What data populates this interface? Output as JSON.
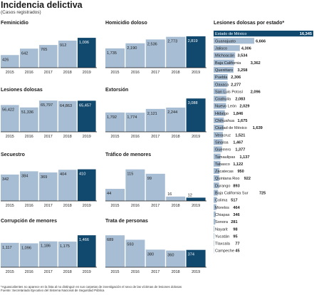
{
  "header": {
    "title": "Incidencia delictiva",
    "subtitle": "(Casos registrados)"
  },
  "footnote": {
    "line1": "*Aguascalientes no aparece en la lista al no distinguir en sus carpetas de investigación el sexo de las víctimas de lesiones dolosas",
    "line2": "Fuente: Secretariado Ejecutivo del Sistema Nacional de Seguridad Pública"
  },
  "colors": {
    "bar": "#a7bdd3",
    "highlight": "#10486e",
    "axis": "#1a1a1a"
  },
  "chart_data": [
    {
      "type": "bar",
      "title": "Feminicidio",
      "categories": [
        "2015",
        "2016",
        "2017",
        "2018",
        "2019"
      ],
      "values": [
        426,
        642,
        765,
        912,
        1006
      ],
      "value_labels": [
        "426",
        "642",
        "765",
        "912",
        "1,006"
      ],
      "highlight_index": 4
    },
    {
      "type": "bar",
      "title": "Homicidio doloso",
      "categories": [
        "2015",
        "2016",
        "2017",
        "2018",
        "2019"
      ],
      "values": [
        1735,
        2190,
        2536,
        2773,
        2819
      ],
      "value_labels": [
        "1,735",
        "2,190",
        "2,536",
        "2,773",
        "2,819"
      ],
      "highlight_index": 4
    },
    {
      "type": "bar",
      "title": "Lesiones dolosas",
      "categories": [
        "2015",
        "2016",
        "2017",
        "2018",
        "2019"
      ],
      "values": [
        56422,
        51336,
        65797,
        64863,
        65457
      ],
      "value_labels": [
        "56,422",
        "51,336",
        "65,797",
        "64,863",
        "65,457"
      ],
      "highlight_index": 4
    },
    {
      "type": "bar",
      "title": "Extorsión",
      "categories": [
        "2015",
        "2016",
        "2017",
        "2018",
        "2019"
      ],
      "values": [
        1792,
        1774,
        2121,
        2244,
        3088
      ],
      "value_labels": [
        "1,792",
        "1,774",
        "2,121",
        "2,244",
        "3,088"
      ],
      "highlight_index": 4
    },
    {
      "type": "bar",
      "title": "Secuestro",
      "categories": [
        "2015",
        "2016",
        "2017",
        "2018",
        "2019"
      ],
      "values": [
        342,
        384,
        369,
        404,
        410
      ],
      "value_labels": [
        "342",
        "384",
        "369",
        "404",
        "410"
      ],
      "highlight_index": 4
    },
    {
      "type": "bar",
      "title": "Tráfico de menores",
      "categories": [
        "2015",
        "2016",
        "2017",
        "2018",
        "2019"
      ],
      "values": [
        44,
        115,
        99,
        16,
        12
      ],
      "value_labels": [
        "44",
        "115",
        "99",
        "16",
        "12"
      ],
      "highlight_index": 4
    },
    {
      "type": "bar",
      "title": "Corrupción de menores",
      "categories": [
        "2015",
        "2016",
        "2017",
        "2018",
        "2019"
      ],
      "values": [
        1117,
        1096,
        1186,
        1175,
        1466
      ],
      "value_labels": [
        "1,117",
        "1,096",
        "1,186",
        "1,175",
        "1,466"
      ],
      "highlight_index": 4
    },
    {
      "type": "bar",
      "title": "Trata de personas",
      "categories": [
        "2015",
        "2016",
        "2017",
        "2018",
        "2019"
      ],
      "values": [
        689,
        593,
        380,
        360,
        374
      ],
      "value_labels": [
        "689",
        "593",
        "380",
        "360",
        "374"
      ],
      "highlight_index": 4
    },
    {
      "type": "bar",
      "orientation": "horizontal",
      "title": "Lesiones dolosas por estado*",
      "categories": [
        "Estado de México",
        "Guanajuato",
        "Jalisco",
        "Michoacán",
        "Baja California",
        "Querétaro",
        "Puebla",
        "Oaxaca",
        "San Luis Potosí",
        "Coahuila",
        "Nuevo León",
        "Hidalgo",
        "Chihuahua",
        "Ciudad de México",
        "Veracruz",
        "Sinaloa",
        "Guerrero",
        "Tamaulipas",
        "Tabasco",
        "Zacatecas",
        "Quintana Roo",
        "Durango",
        "Baja California Sur",
        "Colima",
        "Morelos",
        "Chiapas",
        "Sonora",
        "Nayarit",
        "Yucatán",
        "Tlaxcala",
        "Campeche"
      ],
      "values": [
        16345,
        6666,
        4306,
        3534,
        3362,
        3258,
        2306,
        2277,
        2096,
        2083,
        2029,
        1846,
        1675,
        1639,
        1521,
        1467,
        1377,
        1137,
        1122,
        950,
        922,
        893,
        725,
        517,
        464,
        346,
        281,
        98,
        95,
        77,
        45
      ],
      "value_labels": [
        "16,345",
        "6,666",
        "4,306",
        "3,534",
        "3,362",
        "3,258",
        "2,306",
        "2,277",
        "2,096",
        "2,083",
        "2,029",
        "1,846",
        "1,675",
        "1,639",
        "1,521",
        "1,467",
        "1,377",
        "1,137",
        "1,122",
        "950",
        "922",
        "893",
        "725",
        "517",
        "464",
        "346",
        "281",
        "98",
        "95",
        "77",
        "45"
      ],
      "highlight_index": 0
    }
  ]
}
